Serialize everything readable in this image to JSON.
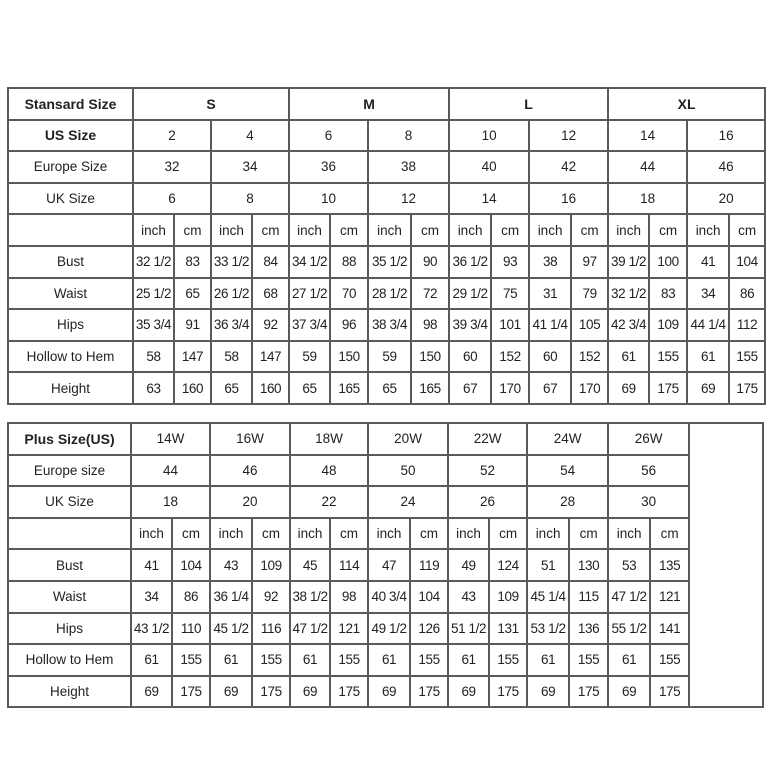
{
  "standard_table": {
    "header_label": "Stansard Size",
    "groups": [
      "S",
      "M",
      "L",
      "XL"
    ],
    "us_label": "US Size",
    "us_sizes": [
      "2",
      "4",
      "6",
      "8",
      "10",
      "12",
      "14",
      "16"
    ],
    "europe_label": "Europe Size",
    "europe_sizes": [
      "32",
      "34",
      "36",
      "38",
      "40",
      "42",
      "44",
      "46"
    ],
    "uk_label": "UK Size",
    "uk_sizes": [
      "6",
      "8",
      "10",
      "12",
      "14",
      "16",
      "18",
      "20"
    ],
    "unit_inch": "inch",
    "unit_cm": "cm",
    "rows": [
      {
        "label": "Bust",
        "values": [
          "32 1/2",
          "83",
          "33 1/2",
          "84",
          "34 1/2",
          "88",
          "35 1/2",
          "90",
          "36 1/2",
          "93",
          "38",
          "97",
          "39 1/2",
          "100",
          "41",
          "104"
        ]
      },
      {
        "label": "Waist",
        "values": [
          "25 1/2",
          "65",
          "26 1/2",
          "68",
          "27 1/2",
          "70",
          "28 1/2",
          "72",
          "29 1/2",
          "75",
          "31",
          "79",
          "32 1/2",
          "83",
          "34",
          "86"
        ]
      },
      {
        "label": "Hips",
        "values": [
          "35 3/4",
          "91",
          "36 3/4",
          "92",
          "37 3/4",
          "96",
          "38 3/4",
          "98",
          "39 3/4",
          "101",
          "41 1/4",
          "105",
          "42 3/4",
          "109",
          "44 1/4",
          "112"
        ]
      },
      {
        "label": "Hollow to Hem",
        "values": [
          "58",
          "147",
          "58",
          "147",
          "59",
          "150",
          "59",
          "150",
          "60",
          "152",
          "60",
          "152",
          "61",
          "155",
          "61",
          "155"
        ]
      },
      {
        "label": "Height",
        "values": [
          "63",
          "160",
          "65",
          "160",
          "65",
          "165",
          "65",
          "165",
          "67",
          "170",
          "67",
          "170",
          "69",
          "175",
          "69",
          "175"
        ]
      }
    ]
  },
  "plus_table": {
    "header_label": "Plus Size(US)",
    "us_sizes": [
      "14W",
      "16W",
      "18W",
      "20W",
      "22W",
      "24W",
      "26W"
    ],
    "europe_label": "Europe size",
    "europe_sizes": [
      "44",
      "46",
      "48",
      "50",
      "52",
      "54",
      "56"
    ],
    "uk_label": "UK Size",
    "uk_sizes": [
      "18",
      "20",
      "22",
      "24",
      "26",
      "28",
      "30"
    ],
    "unit_inch": "inch",
    "unit_cm": "cm",
    "rows": [
      {
        "label": "Bust",
        "values": [
          "41",
          "104",
          "43",
          "109",
          "45",
          "114",
          "47",
          "119",
          "49",
          "124",
          "51",
          "130",
          "53",
          "135"
        ]
      },
      {
        "label": "Waist",
        "values": [
          "34",
          "86",
          "36 1/4",
          "92",
          "38 1/2",
          "98",
          "40 3/4",
          "104",
          "43",
          "109",
          "45 1/4",
          "115",
          "47 1/2",
          "121"
        ]
      },
      {
        "label": "Hips",
        "values": [
          "43 1/2",
          "110",
          "45 1/2",
          "116",
          "47 1/2",
          "121",
          "49 1/2",
          "126",
          "51 1/2",
          "131",
          "53 1/2",
          "136",
          "55 1/2",
          "141"
        ]
      },
      {
        "label": "Hollow to Hem",
        "values": [
          "61",
          "155",
          "61",
          "155",
          "61",
          "155",
          "61",
          "155",
          "61",
          "155",
          "61",
          "155",
          "61",
          "155"
        ]
      },
      {
        "label": "Height",
        "values": [
          "69",
          "175",
          "69",
          "175",
          "69",
          "175",
          "69",
          "175",
          "69",
          "175",
          "69",
          "175",
          "69",
          "175"
        ]
      }
    ]
  }
}
